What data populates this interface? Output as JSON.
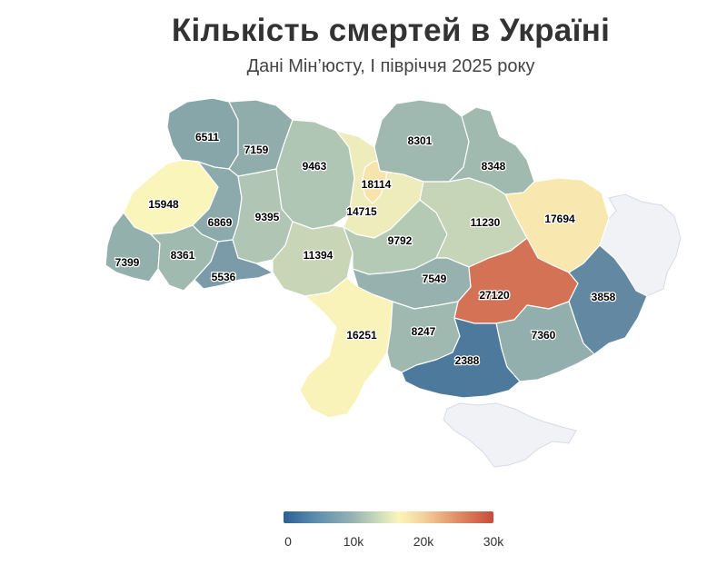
{
  "title": "Кількість смертей в Україні",
  "subtitle": "Дані Мін’юсту, I півріччя 2025 року",
  "color_scale": {
    "stops": [
      {
        "value": 0,
        "color": "#2c5f94"
      },
      {
        "value": 10000,
        "color": "#b8ccb6"
      },
      {
        "value": 16000,
        "color": "#fbf5bb"
      },
      {
        "value": 20000,
        "color": "#f3d49c"
      },
      {
        "value": 30000,
        "color": "#c84a3a"
      }
    ],
    "no_data_color": "#f1f2f6"
  },
  "legend": {
    "ticks": [
      {
        "value": 0,
        "label": "0"
      },
      {
        "value": 10000,
        "label": "10k"
      },
      {
        "value": 20000,
        "label": "20k"
      },
      {
        "value": 30000,
        "label": "30k"
      }
    ]
  },
  "regions": [
    {
      "id": "volyn",
      "label": "6511",
      "value": 6511
    },
    {
      "id": "rivne",
      "label": "7159",
      "value": 7159
    },
    {
      "id": "zhytomyr",
      "label": "9463",
      "value": 9463
    },
    {
      "id": "kyiv-oblast",
      "label": "14715",
      "value": 14715
    },
    {
      "id": "kyiv-city",
      "label": "18114",
      "value": 18114
    },
    {
      "id": "chernihiv",
      "label": "8301",
      "value": 8301
    },
    {
      "id": "sumy",
      "label": "8348",
      "value": 8348
    },
    {
      "id": "lviv",
      "label": "15948",
      "value": 15948
    },
    {
      "id": "ternopil",
      "label": "6869",
      "value": 6869
    },
    {
      "id": "khmelnytskyi",
      "label": "9395",
      "value": 9395
    },
    {
      "id": "vinnytsia",
      "label": "11394",
      "value": 11394
    },
    {
      "id": "cherkasy",
      "label": "9792",
      "value": 9792
    },
    {
      "id": "poltava",
      "label": "11230",
      "value": 11230
    },
    {
      "id": "kharkiv",
      "label": "17694",
      "value": 17694
    },
    {
      "id": "zakarpattia",
      "label": "7399",
      "value": 7399
    },
    {
      "id": "ivano-frankivsk",
      "label": "8361",
      "value": 8361
    },
    {
      "id": "chernivtsi",
      "label": "5536",
      "value": 5536
    },
    {
      "id": "kirovohrad",
      "label": "7549",
      "value": 7549
    },
    {
      "id": "dnipropetrovsk",
      "label": "27120",
      "value": 27120
    },
    {
      "id": "donetsk",
      "label": "3858",
      "value": 3858
    },
    {
      "id": "odesa",
      "label": "16251",
      "value": 16251
    },
    {
      "id": "mykolaiv",
      "label": "8247",
      "value": 8247
    },
    {
      "id": "zaporizhzhia",
      "label": "7360",
      "value": 7360
    },
    {
      "id": "kherson",
      "label": "2388",
      "value": 2388
    }
  ]
}
